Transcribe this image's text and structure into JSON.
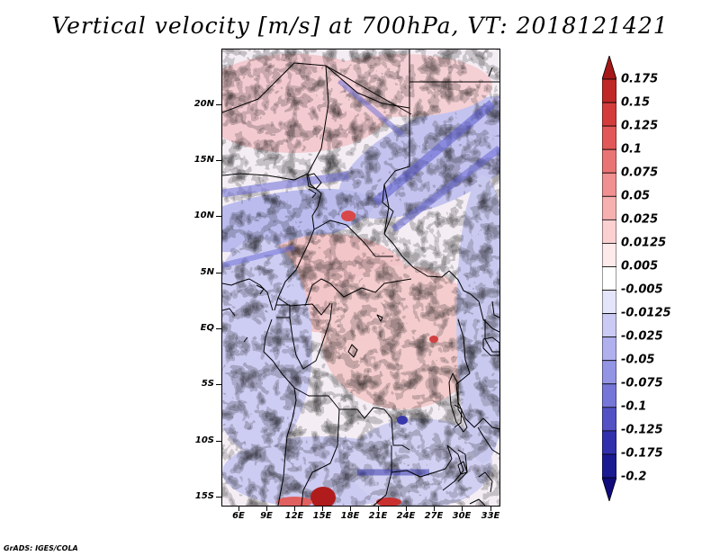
{
  "title": "Vertical velocity [m/s] at 700hPa, VT: 2018121421",
  "credit": "GrADS: IGES/COLA",
  "map": {
    "lat_labels": [
      "20N",
      "15N",
      "10N",
      "5N",
      "EQ",
      "5S",
      "10S",
      "15S"
    ],
    "lon_labels": [
      "6E",
      "9E",
      "12E",
      "15E",
      "18E",
      "21E",
      "24E",
      "27E",
      "30E",
      "33E"
    ]
  },
  "colorbar": {
    "labels": [
      "0.175",
      "0.15",
      "0.125",
      "0.1",
      "0.075",
      "0.05",
      "0.025",
      "0.0125",
      "0.005",
      "-0.005",
      "-0.0125",
      "-0.025",
      "-0.05",
      "-0.075",
      "-0.1",
      "-0.125",
      "-0.175",
      "-0.2"
    ],
    "colors": [
      "#a51818",
      "#c02828",
      "#d43c3c",
      "#e25858",
      "#ea7474",
      "#f09090",
      "#f6b0b0",
      "#fad0d0",
      "#fdeaea",
      "#ffffff",
      "#e4e4fa",
      "#cacaf4",
      "#b0b0ee",
      "#9494e4",
      "#7676d8",
      "#5252c4",
      "#3030ac",
      "#1a1a92",
      "#100a7c"
    ]
  },
  "chart_data": {
    "type": "heatmap",
    "title": "Vertical velocity [m/s] at 700hPa, VT: 2018121421",
    "variable": "Vertical velocity",
    "units": "m/s",
    "level": "700hPa",
    "valid_time": "2018121421",
    "lon_range": [
      3.5,
      33.5
    ],
    "lat_range": [
      -16,
      24.5
    ],
    "color_levels": [
      -0.2,
      -0.175,
      -0.125,
      -0.1,
      -0.075,
      -0.05,
      -0.025,
      -0.0125,
      -0.005,
      0.005,
      0.0125,
      0.025,
      0.05,
      0.075,
      0.1,
      0.125,
      0.15,
      0.175
    ]
  }
}
